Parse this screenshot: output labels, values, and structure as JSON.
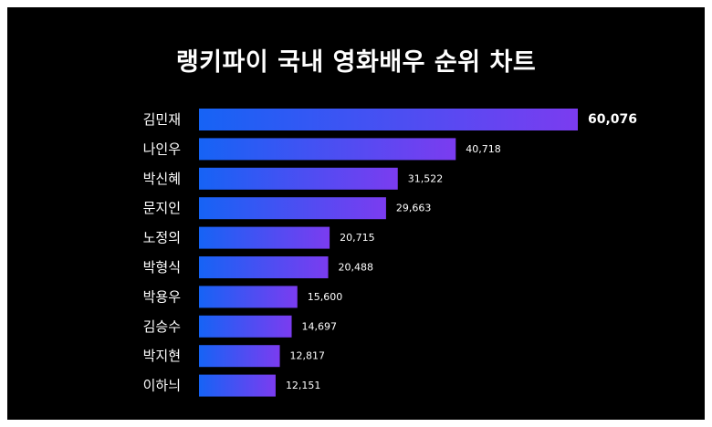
{
  "chart_data": {
    "type": "bar",
    "orientation": "horizontal",
    "title": "랭키파이 국내 영화배우 순위 차트",
    "categories": [
      "김민재",
      "나인우",
      "박신혜",
      "문지인",
      "노정의",
      "박형식",
      "박용우",
      "김승수",
      "박지현",
      "이하늬"
    ],
    "values": [
      60076,
      40718,
      31522,
      29663,
      20715,
      20488,
      15600,
      14697,
      12817,
      12151
    ],
    "value_labels": [
      "60,076",
      "40,718",
      "31,522",
      "29,663",
      "20,715",
      "20,488",
      "15,600",
      "14,697",
      "12,817",
      "12,151"
    ],
    "xlabel": "",
    "ylabel": "",
    "grid": false,
    "legend": "none",
    "colors": {
      "background": "#000000",
      "bar_gradient_start": "#1663f5",
      "bar_gradient_end": "#7b3cf0",
      "text": "#ffffff"
    }
  }
}
